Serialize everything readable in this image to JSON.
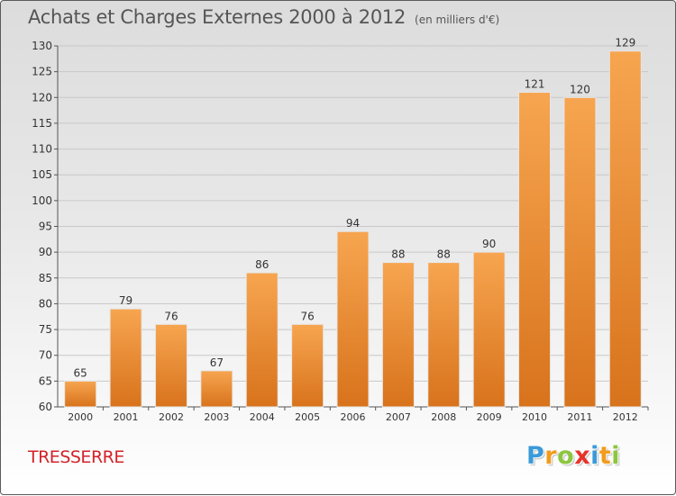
{
  "title": "Achats et Charges Externes 2000 à 2012",
  "subtitle": "(en milliers d'€)",
  "commune": "TRESSERRE",
  "logo": {
    "text": "Proxiti",
    "letters": [
      {
        "ch": "P",
        "color": "#3a9ad9"
      },
      {
        "ch": "r",
        "color": "#f29b1c"
      },
      {
        "ch": "o",
        "color": "#8cc63f"
      },
      {
        "ch": "x",
        "color": "#e8332a"
      },
      {
        "ch": "i",
        "color": "#3a9ad9"
      },
      {
        "ch": "t",
        "color": "#f29b1c"
      },
      {
        "ch": "i",
        "color": "#8cc63f"
      }
    ]
  },
  "colors": {
    "bar_light": "#f7a550",
    "bar_dark": "#d8731c",
    "commune_text": "#d2232a"
  },
  "chart_data": {
    "type": "bar",
    "categories": [
      "2000",
      "2001",
      "2002",
      "2003",
      "2004",
      "2005",
      "2006",
      "2007",
      "2008",
      "2009",
      "2010",
      "2011",
      "2012"
    ],
    "values": [
      65,
      79,
      76,
      67,
      86,
      76,
      94,
      88,
      88,
      90,
      121,
      120,
      129
    ],
    "ylim": [
      60,
      130
    ],
    "yticks": [
      60,
      65,
      70,
      75,
      80,
      85,
      90,
      95,
      100,
      105,
      110,
      115,
      120,
      125,
      130
    ],
    "grid": true,
    "legend": "none"
  }
}
